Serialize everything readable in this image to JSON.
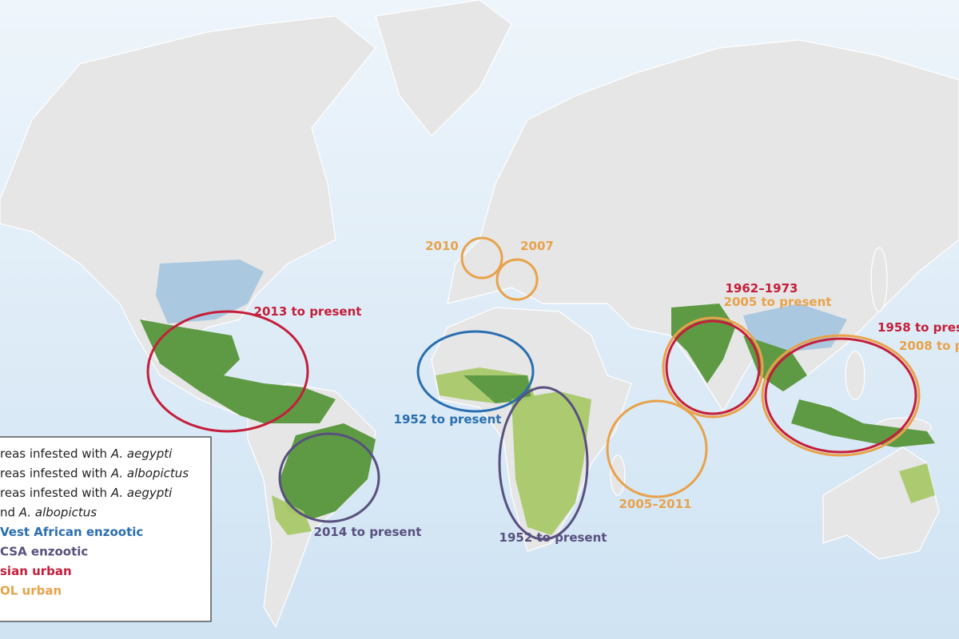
{
  "annotations": [
    {
      "text": "2013 to present",
      "color": "#c41e3a"
    },
    {
      "text": "2010",
      "color": "#e8a24a"
    },
    {
      "text": "2007",
      "color": "#e8a24a"
    },
    {
      "text": "1962–1973",
      "color": "#c41e3a"
    },
    {
      "text": "2005 to present",
      "color": "#e8a24a"
    },
    {
      "text": "1958 to prese",
      "color": "#c41e3a"
    },
    {
      "text": "2008 to p",
      "color": "#e8a24a"
    },
    {
      "text": "1952 to present",
      "color": "#2a6eb0"
    },
    {
      "text": "2014 to present",
      "color": "#58507e"
    },
    {
      "text": "1952 to present",
      "color": "#58507e"
    },
    {
      "text": "2005–2011",
      "color": "#e8a24a"
    }
  ],
  "legend": {
    "rows": [
      {
        "plain": "reas infested with ",
        "italic": "A. aegypti"
      },
      {
        "plain": "reas infested with ",
        "italic": "A. albopictus"
      },
      {
        "plain": "reas infested with ",
        "italic": "A. aegypti"
      },
      {
        "plain": "nd ",
        "italic": "A. albopictus"
      },
      {
        "label": "Vest African enzootic",
        "color": "#2a6eb0"
      },
      {
        "label": "CSA enzootic",
        "color": "#58507e"
      },
      {
        "label": "sian urban",
        "color": "#c41e3a"
      },
      {
        "label": "OL urban",
        "color": "#e8a24a"
      }
    ]
  }
}
